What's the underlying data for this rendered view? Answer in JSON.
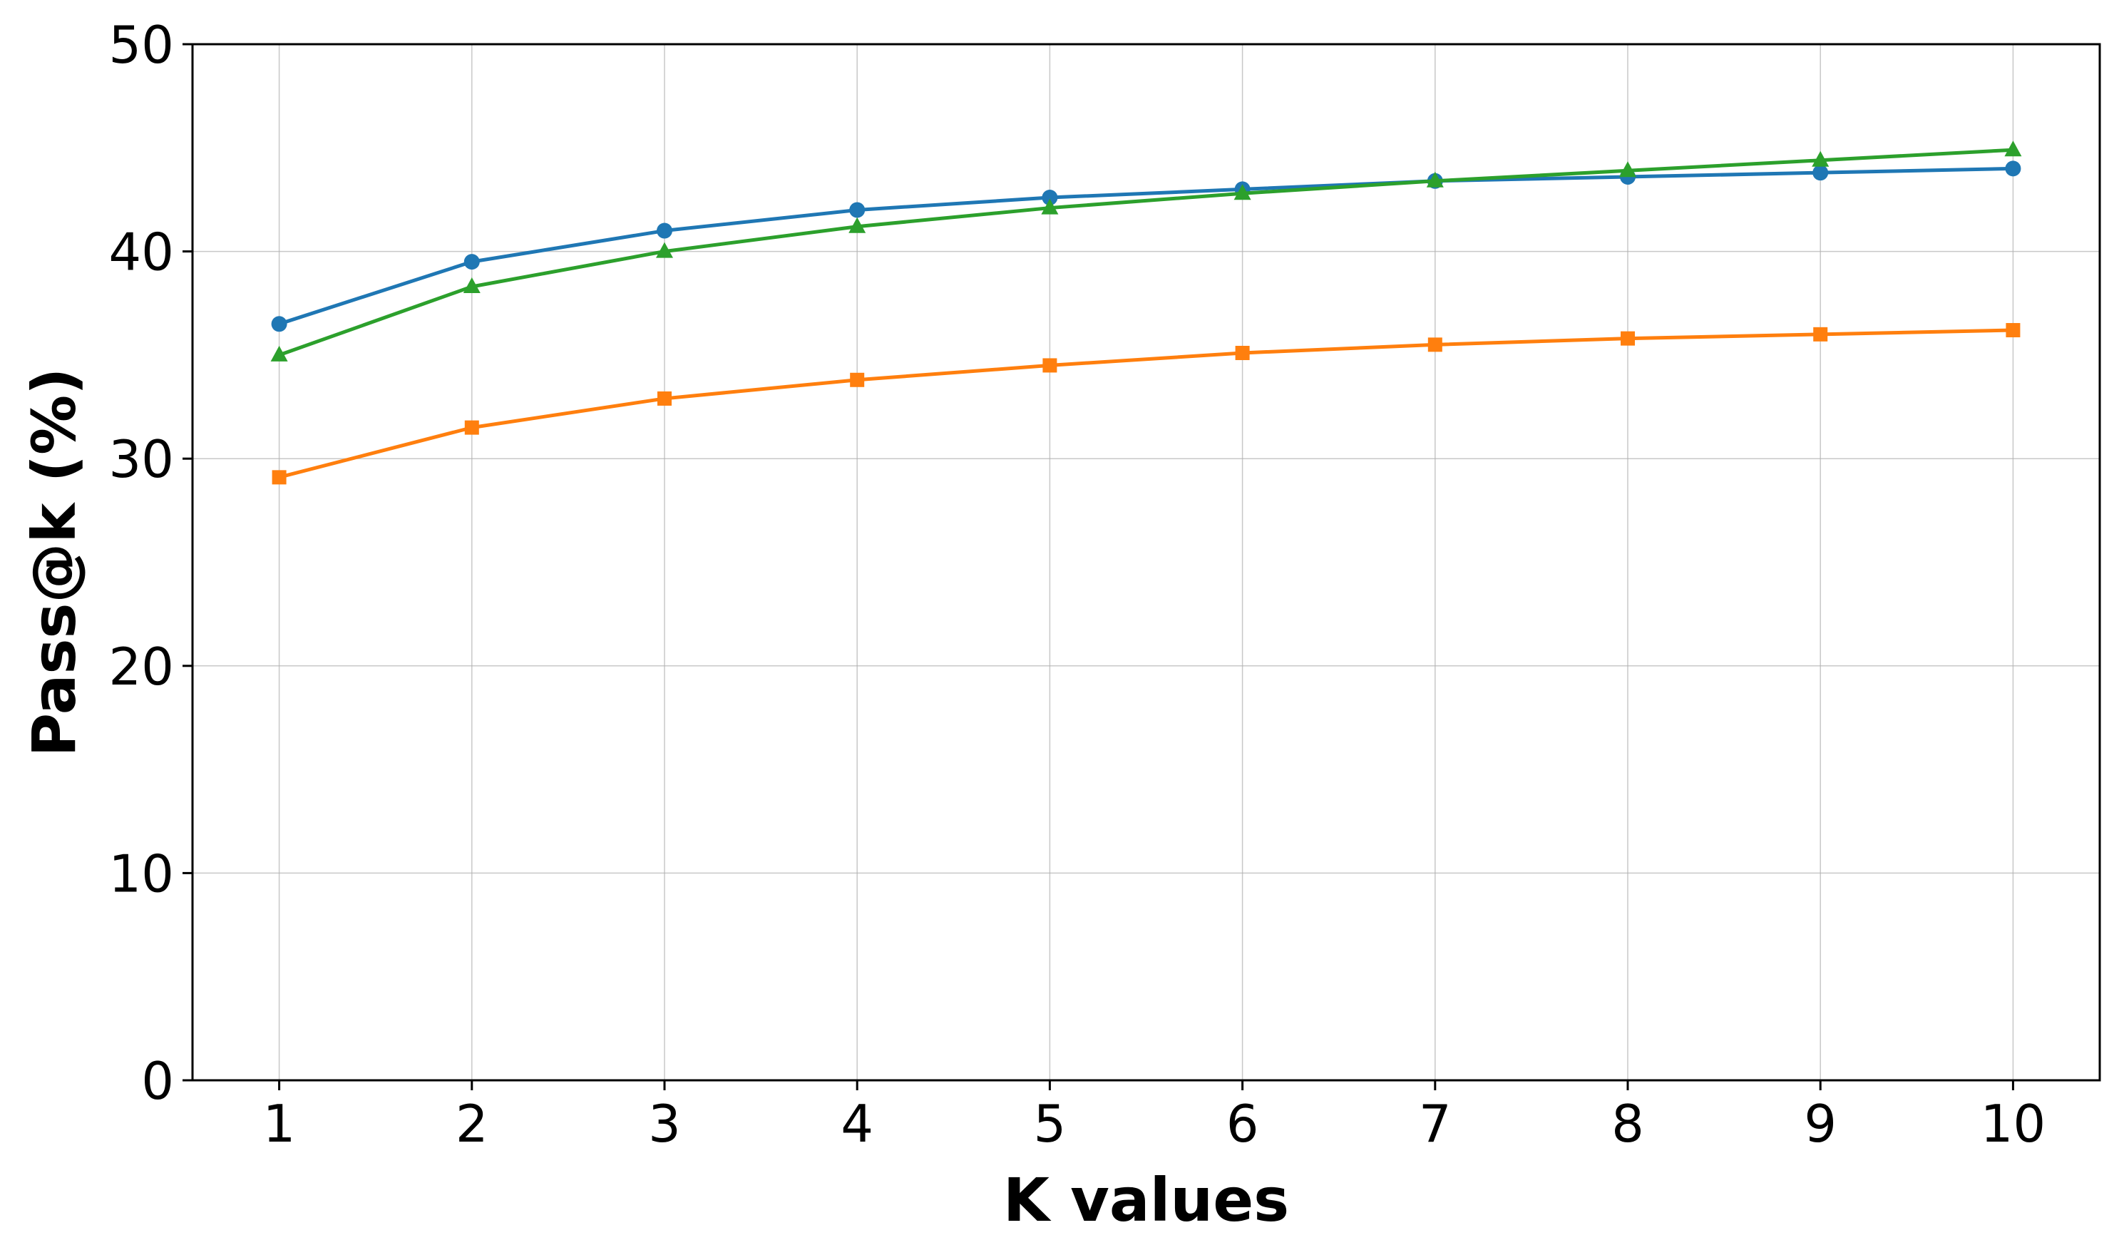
{
  "chart_data": {
    "type": "line",
    "title": "",
    "xlabel": "K values",
    "ylabel": "Pass@k (%)",
    "x": [
      1,
      2,
      3,
      4,
      5,
      6,
      7,
      8,
      9,
      10
    ],
    "xlim": [
      0.55,
      10.45
    ],
    "ylim": [
      0,
      50
    ],
    "xticks": [
      1,
      2,
      3,
      4,
      5,
      6,
      7,
      8,
      9,
      10
    ],
    "yticks": [
      0,
      10,
      20,
      30,
      40,
      50
    ],
    "grid": true,
    "legend": "none",
    "series": [
      {
        "color": "#1f77b4",
        "marker": "circle",
        "values": [
          36.5,
          39.5,
          41.0,
          42.0,
          42.6,
          43.0,
          43.4,
          43.6,
          43.8,
          44.0
        ]
      },
      {
        "color": "#ff7f0e",
        "marker": "square",
        "values": [
          29.1,
          31.5,
          32.9,
          33.8,
          34.5,
          35.1,
          35.5,
          35.8,
          36.0,
          36.2
        ]
      },
      {
        "color": "#2ca02c",
        "marker": "triangle",
        "values": [
          35.0,
          38.3,
          40.0,
          41.2,
          42.1,
          42.8,
          43.4,
          43.9,
          44.4,
          44.9
        ]
      }
    ]
  }
}
